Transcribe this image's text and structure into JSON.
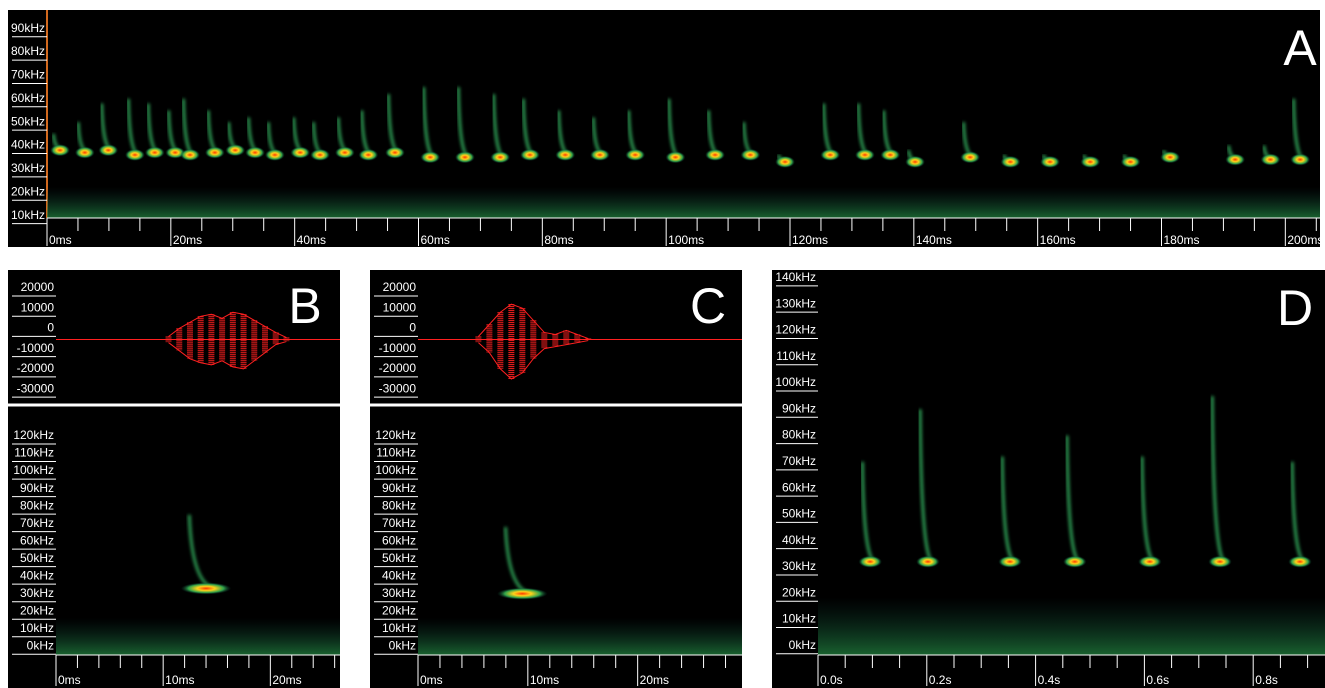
{
  "chart_data": [
    {
      "type": "spectrogram",
      "label": "A",
      "xlim": [
        0,
        205.6
      ],
      "ylim": [
        9,
        98
      ],
      "xticks": [
        {
          "value": 0,
          "label": "0ms"
        },
        {
          "value": 20,
          "label": "20ms"
        },
        {
          "value": 40,
          "label": "40ms"
        },
        {
          "value": 60,
          "label": "60ms"
        },
        {
          "value": 80,
          "label": "80ms"
        },
        {
          "value": 100,
          "label": "100ms"
        },
        {
          "value": 120,
          "label": "120ms"
        },
        {
          "value": 140,
          "label": "140ms"
        },
        {
          "value": 160,
          "label": "160ms"
        },
        {
          "value": 180,
          "label": "180ms"
        },
        {
          "value": 200,
          "label": "200ms"
        }
      ],
      "xminor_ticks": [
        5,
        10,
        15,
        25,
        30,
        35,
        45,
        50,
        55,
        65,
        70,
        75,
        85,
        90,
        95,
        105,
        110,
        115,
        125,
        130,
        135,
        145,
        150,
        155,
        165,
        170,
        175,
        185,
        190,
        195,
        205
      ],
      "yticks": [
        {
          "value": 10,
          "label": "10kHz"
        },
        {
          "value": 20,
          "label": "20kHz"
        },
        {
          "value": 30,
          "label": "30kHz"
        },
        {
          "value": 40,
          "label": "40kHz"
        },
        {
          "value": 50,
          "label": "50kHz"
        },
        {
          "value": 60,
          "label": "60kHz"
        },
        {
          "value": 70,
          "label": "70kHz"
        },
        {
          "value": 80,
          "label": "80kHz"
        },
        {
          "value": 90,
          "label": "90kHz"
        }
      ],
      "x": [
        2.1,
        6.1,
        9.9,
        14.2,
        17.4,
        20.7,
        23.1,
        27.1,
        30.4,
        33.6,
        36.8,
        40.9,
        44.1,
        48.1,
        51.9,
        56.2,
        61.9,
        67.5,
        73.2,
        78,
        83.7,
        89.3,
        95,
        101.5,
        107.9,
        113.6,
        119.2,
        126.5,
        132.1,
        136.2,
        140.2,
        149.1,
        155.6,
        162,
        168.5,
        175,
        181.4,
        191.9,
        197.6,
        202.4
      ],
      "values": [
        38,
        37,
        38,
        36,
        37,
        37,
        36,
        37,
        38,
        37,
        36,
        37,
        36,
        37,
        36,
        37,
        35,
        35,
        35,
        36,
        36,
        36,
        36,
        35,
        36,
        36,
        33,
        36,
        36,
        36,
        33,
        35,
        33,
        33,
        33,
        33,
        35,
        34,
        34,
        34
      ],
      "sweep_top": [
        45,
        50,
        58,
        60,
        58,
        55,
        60,
        55,
        50,
        52,
        50,
        52,
        50,
        52,
        55,
        62,
        65,
        65,
        62,
        60,
        55,
        52,
        55,
        60,
        55,
        50,
        36,
        58,
        58,
        55,
        38,
        50,
        36,
        36,
        36,
        36,
        38,
        40,
        40,
        60
      ]
    },
    {
      "type": "waveform",
      "label": "B",
      "xlim": [
        0,
        26.5
      ],
      "ylim": [
        -35400,
        28900
      ],
      "yticks": [
        20000,
        10000,
        0,
        -10000,
        -20000,
        -30000
      ],
      "baseline": -5500,
      "x": [
        10.5,
        11.5,
        12.5,
        13.5,
        14.5,
        15.5,
        16.5,
        17.5,
        18.5,
        19.5,
        20.5,
        21.5
      ],
      "upper": [
        -4000,
        0,
        3000,
        6000,
        7000,
        5000,
        8000,
        7000,
        4000,
        1000,
        -2000,
        -4500
      ],
      "lower": [
        -7000,
        -11000,
        -15000,
        -17000,
        -18000,
        -16000,
        -19000,
        -20000,
        -16000,
        -12000,
        -8000,
        -6500
      ]
    },
    {
      "type": "spectrogram",
      "xlim": [
        0,
        26.5
      ],
      "ylim": [
        -5,
        136
      ],
      "xticks": [
        {
          "value": 0,
          "label": "0ms"
        },
        {
          "value": 10,
          "label": "10ms"
        },
        {
          "value": 20,
          "label": "20ms"
        }
      ],
      "xminor_ticks": [
        2,
        4,
        6,
        8,
        12,
        14,
        16,
        18,
        22,
        24,
        26
      ],
      "yticks": [
        {
          "value": 0,
          "label": "0kHz"
        },
        {
          "value": 10,
          "label": "10kHz"
        },
        {
          "value": 20,
          "label": "20kHz"
        },
        {
          "value": 30,
          "label": "30kHz"
        },
        {
          "value": 40,
          "label": "40kHz"
        },
        {
          "value": 50,
          "label": "50kHz"
        },
        {
          "value": 60,
          "label": "60kHz"
        },
        {
          "value": 70,
          "label": "70kHz"
        },
        {
          "value": 80,
          "label": "80kHz"
        },
        {
          "value": 90,
          "label": "90kHz"
        },
        {
          "value": 100,
          "label": "100kHz"
        },
        {
          "value": 110,
          "label": "110kHz"
        },
        {
          "value": 120,
          "label": "120kHz"
        }
      ],
      "x": [
        14
      ],
      "values": [
        33
      ],
      "sweep_top": [
        75
      ]
    },
    {
      "type": "waveform",
      "label": "C",
      "xlim": [
        0,
        29.5
      ],
      "ylim": [
        -35400,
        28900
      ],
      "yticks": [
        20000,
        10000,
        0,
        -10000,
        -20000,
        -30000
      ],
      "baseline": -5500,
      "x": [
        5.5,
        6.5,
        7.5,
        8.5,
        9.5,
        10.5,
        11.5,
        12.5,
        13.5,
        14.5,
        15.5
      ],
      "upper": [
        -4000,
        2000,
        8000,
        12000,
        10000,
        4000,
        -2000,
        -3000,
        -1000,
        -3000,
        -5000
      ],
      "lower": [
        -7000,
        -12000,
        -20000,
        -25000,
        -22000,
        -15000,
        -10000,
        -9000,
        -8000,
        -7000,
        -6000
      ]
    },
    {
      "type": "spectrogram",
      "xlim": [
        0,
        29.5
      ],
      "ylim": [
        -5,
        136
      ],
      "xticks": [
        {
          "value": 0,
          "label": "0ms"
        },
        {
          "value": 10,
          "label": "10ms"
        },
        {
          "value": 20,
          "label": "20ms"
        }
      ],
      "xminor_ticks": [
        2,
        4,
        6,
        8,
        12,
        14,
        16,
        18,
        22,
        24,
        26,
        28
      ],
      "yticks": [
        {
          "value": 0,
          "label": "0kHz"
        },
        {
          "value": 10,
          "label": "10kHz"
        },
        {
          "value": 20,
          "label": "20kHz"
        },
        {
          "value": 30,
          "label": "30kHz"
        },
        {
          "value": 40,
          "label": "40kHz"
        },
        {
          "value": 50,
          "label": "50kHz"
        },
        {
          "value": 60,
          "label": "60kHz"
        },
        {
          "value": 70,
          "label": "70kHz"
        },
        {
          "value": 80,
          "label": "80kHz"
        },
        {
          "value": 90,
          "label": "90kHz"
        },
        {
          "value": 100,
          "label": "100kHz"
        },
        {
          "value": 110,
          "label": "110kHz"
        },
        {
          "value": 120,
          "label": "120kHz"
        }
      ],
      "x": [
        9.5
      ],
      "values": [
        30
      ],
      "sweep_top": [
        68
      ]
    },
    {
      "type": "spectrogram",
      "label": "D",
      "xlim": [
        0,
        0.932
      ],
      "ylim": [
        -3.5,
        143
      ],
      "xticks": [
        {
          "value": 0,
          "label": "0.0s"
        },
        {
          "value": 0.2,
          "label": "0.2s"
        },
        {
          "value": 0.4,
          "label": "0.4s"
        },
        {
          "value": 0.6,
          "label": "0.6s"
        },
        {
          "value": 0.8,
          "label": "0.8s"
        }
      ],
      "xminor_ticks": [
        0.05,
        0.1,
        0.15,
        0.25,
        0.3,
        0.35,
        0.45,
        0.5,
        0.55,
        0.65,
        0.7,
        0.75,
        0.85,
        0.9
      ],
      "yticks": [
        {
          "value": 0,
          "label": "0kHz"
        },
        {
          "value": 10,
          "label": "10kHz"
        },
        {
          "value": 20,
          "label": "20kHz"
        },
        {
          "value": 30,
          "label": "30kHz"
        },
        {
          "value": 40,
          "label": "40kHz"
        },
        {
          "value": 50,
          "label": "50kHz"
        },
        {
          "value": 60,
          "label": "60kHz"
        },
        {
          "value": 70,
          "label": "70kHz"
        },
        {
          "value": 80,
          "label": "80kHz"
        },
        {
          "value": 90,
          "label": "90kHz"
        },
        {
          "value": 100,
          "label": "100kHz"
        },
        {
          "value": 110,
          "label": "110kHz"
        },
        {
          "value": 120,
          "label": "120kHz"
        },
        {
          "value": 130,
          "label": "130kHz"
        },
        {
          "value": 140,
          "label": "140kHz"
        }
      ],
      "x": [
        0.096,
        0.202,
        0.353,
        0.472,
        0.61,
        0.739,
        0.886
      ],
      "values": [
        32,
        32,
        32,
        32,
        32,
        32,
        32
      ],
      "sweep_top": [
        70,
        90,
        72,
        80,
        72,
        95,
        70
      ]
    }
  ]
}
